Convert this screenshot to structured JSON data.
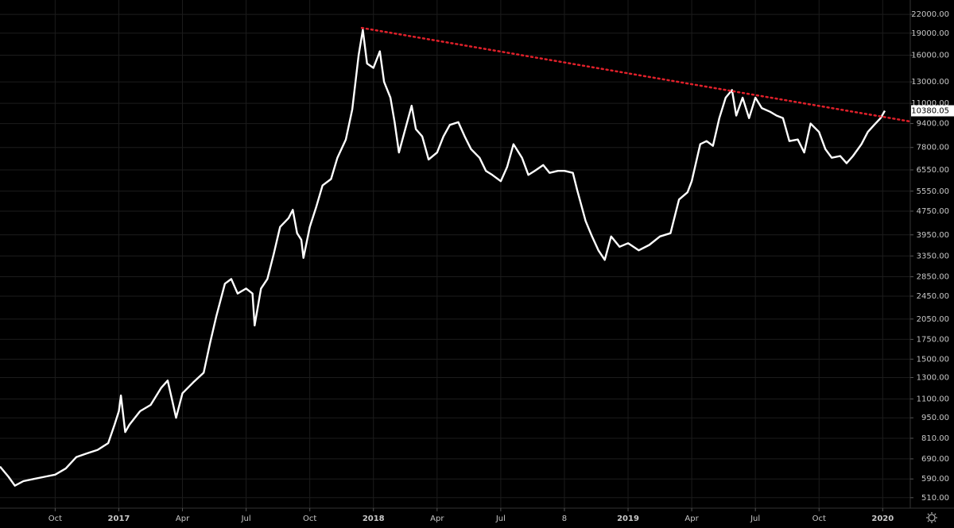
{
  "chart_data": {
    "type": "line",
    "log_scale": true,
    "grid": true,
    "x": [
      -5.6,
      -5.2,
      -4.9,
      -4.5,
      -4,
      -3.5,
      -3,
      -2.5,
      -2,
      -1.5,
      -1,
      -0.5,
      -0.2,
      0,
      0.1,
      0.3,
      0.5,
      1,
      1.5,
      2,
      2.3,
      2.5,
      2.7,
      3,
      3.5,
      4,
      4.3,
      4.6,
      5,
      5.3,
      5.6,
      6,
      6.3,
      6.4,
      6.7,
      7,
      7.3,
      7.6,
      8,
      8.2,
      8.4,
      8.6,
      8.7,
      9,
      9.3,
      9.6,
      10,
      10.3,
      10.7,
      11,
      11.3,
      11.5,
      11.7,
      12,
      12.3,
      12.5,
      12.8,
      13,
      13.2,
      13.5,
      13.8,
      14,
      14.3,
      14.6,
      15,
      15.3,
      15.6,
      16,
      16.3,
      16.6,
      17,
      17.3,
      17.6,
      18,
      18.3,
      18.6,
      19,
      19.3,
      19.6,
      20,
      20.3,
      20.7,
      21,
      21.4,
      21.6,
      22,
      22.3,
      22.6,
      22.9,
      23.2,
      23.6,
      24,
      24.5,
      25,
      25.5,
      26,
      26.4,
      26.8,
      27,
      27.4,
      27.7,
      28,
      28.3,
      28.6,
      28.9,
      29.1,
      29.4,
      29.7,
      30,
      30.3,
      30.7,
      31,
      31.3,
      31.6,
      32,
      32.3,
      32.6,
      33,
      33.3,
      33.6,
      34,
      34.3,
      34.6,
      35,
      35.3,
      35.6,
      35.9,
      36.1
    ],
    "series": [
      {
        "color": "#ffffff",
        "values": [
          650,
          600,
          560,
          580,
          590,
          600,
          610,
          640,
          700,
          720,
          740,
          780,
          900,
          1000,
          1130,
          850,
          900,
          1000,
          1050,
          1200,
          1270,
          1100,
          950,
          1150,
          1250,
          1350,
          1700,
          2100,
          2700,
          2800,
          2500,
          2600,
          2500,
          1950,
          2600,
          2800,
          3400,
          4200,
          4500,
          4800,
          4000,
          3800,
          3300,
          4200,
          4900,
          5800,
          6100,
          7200,
          8300,
          10500,
          16000,
          19500,
          15000,
          14500,
          16500,
          13000,
          11500,
          9500,
          7500,
          9000,
          10800,
          9000,
          8500,
          7100,
          7500,
          8500,
          9300,
          9500,
          8500,
          7700,
          7200,
          6500,
          6300,
          6000,
          6700,
          8000,
          7200,
          6300,
          6500,
          6800,
          6400,
          6500,
          6500,
          6400,
          5600,
          4400,
          3900,
          3500,
          3250,
          3900,
          3600,
          3700,
          3500,
          3650,
          3900,
          4000,
          5200,
          5500,
          6000,
          8000,
          8200,
          7900,
          9800,
          11500,
          12200,
          10000,
          11500,
          9800,
          11500,
          10600,
          10300,
          10000,
          9800,
          8200,
          8300,
          7500,
          9400,
          8800,
          7700,
          7200,
          7300,
          6900,
          7300,
          8000,
          8800,
          9300,
          9800,
          10380.05
        ]
      }
    ],
    "trendline": {
      "color": "#e0202a",
      "x": [
        11.45,
        37.3
      ],
      "values": [
        19800,
        9550
      ]
    },
    "xlim": [
      -5.6,
      37.3
    ],
    "xticks": [
      {
        "value": -3,
        "label": "Oct"
      },
      {
        "value": 0,
        "label": "2017"
      },
      {
        "value": 3,
        "label": "Apr"
      },
      {
        "value": 6,
        "label": "Jul"
      },
      {
        "value": 9,
        "label": "Oct"
      },
      {
        "value": 12,
        "label": "2018"
      },
      {
        "value": 15,
        "label": "Apr"
      },
      {
        "value": 18,
        "label": "Jul"
      },
      {
        "value": 21,
        "label": "8"
      },
      {
        "value": 24,
        "label": "2019"
      },
      {
        "value": 27,
        "label": "Apr"
      },
      {
        "value": 30,
        "label": "Jul"
      },
      {
        "value": 33,
        "label": "Oct"
      },
      {
        "value": 36,
        "label": "2020"
      }
    ],
    "ylim": [
      470,
      24600
    ],
    "yticks": [
      {
        "value": 22000,
        "label": "22000.00"
      },
      {
        "value": 19000,
        "label": "19000.00"
      },
      {
        "value": 16000,
        "label": "16000.00"
      },
      {
        "value": 13000,
        "label": "13000.00"
      },
      {
        "value": 11000,
        "label": "11000.00"
      },
      {
        "value": 9400,
        "label": "9400.00"
      },
      {
        "value": 7800,
        "label": "7800.00"
      },
      {
        "value": 6550,
        "label": "6550.00"
      },
      {
        "value": 5550,
        "label": "5550.00"
      },
      {
        "value": 4750,
        "label": "4750.00"
      },
      {
        "value": 3950,
        "label": "3950.00"
      },
      {
        "value": 3350,
        "label": "3350.00"
      },
      {
        "value": 2850,
        "label": "2850.00"
      },
      {
        "value": 2450,
        "label": "2450.00"
      },
      {
        "value": 2050,
        "label": "2050.00"
      },
      {
        "value": 1750,
        "label": "1750.00"
      },
      {
        "value": 1500,
        "label": "1500.00"
      },
      {
        "value": 1300,
        "label": "1300.00"
      },
      {
        "value": 1100,
        "label": "1100.00"
      },
      {
        "value": 950,
        "label": "950.00"
      },
      {
        "value": 810,
        "label": "810.00"
      },
      {
        "value": 690,
        "label": "690.00"
      },
      {
        "value": 590,
        "label": "590.00"
      },
      {
        "value": 510,
        "label": "510.00"
      }
    ]
  }
}
